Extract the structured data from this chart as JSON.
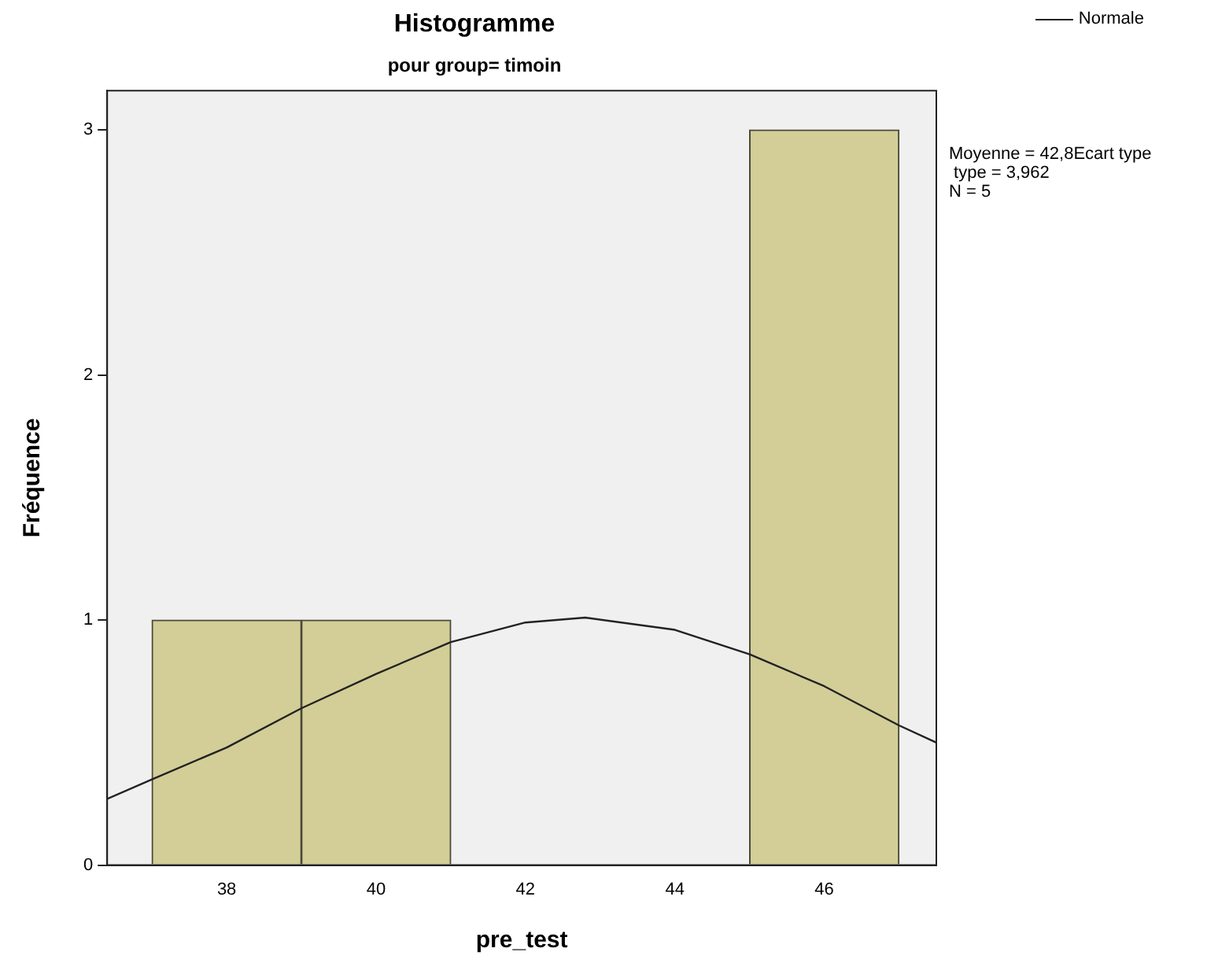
{
  "chart_data": {
    "type": "histogram",
    "title": "Histogramme",
    "subtitle": "pour group= timoin",
    "xlabel": "pre_test",
    "ylabel": "Fréquence",
    "bins": [
      37,
      39,
      41,
      43,
      45,
      47
    ],
    "values": [
      1,
      1,
      0,
      0,
      3
    ],
    "color": "#d3ce97",
    "series": [
      {
        "type": "line",
        "name": "Normale",
        "color": "#222222",
        "x": [
          36.4,
          37,
          38,
          39,
          40,
          41,
          42,
          42.8,
          44,
          45,
          46,
          47,
          47.5
        ],
        "values": [
          0.27,
          0.35,
          0.48,
          0.64,
          0.78,
          0.91,
          0.99,
          1.01,
          0.96,
          0.86,
          0.73,
          0.57,
          0.5
        ]
      }
    ],
    "xlim": [
      36.4,
      47.5
    ],
    "xticks": [
      38,
      40,
      42,
      44,
      46
    ],
    "ylim": [
      0,
      3.16
    ],
    "yticks": [
      0,
      1,
      2,
      3
    ],
    "grid": false,
    "legend": "top right",
    "marker": "none",
    "annotations": [
      "Moyenne = 42,8Ecart type\n type = 3,962\nN = 5"
    ]
  }
}
